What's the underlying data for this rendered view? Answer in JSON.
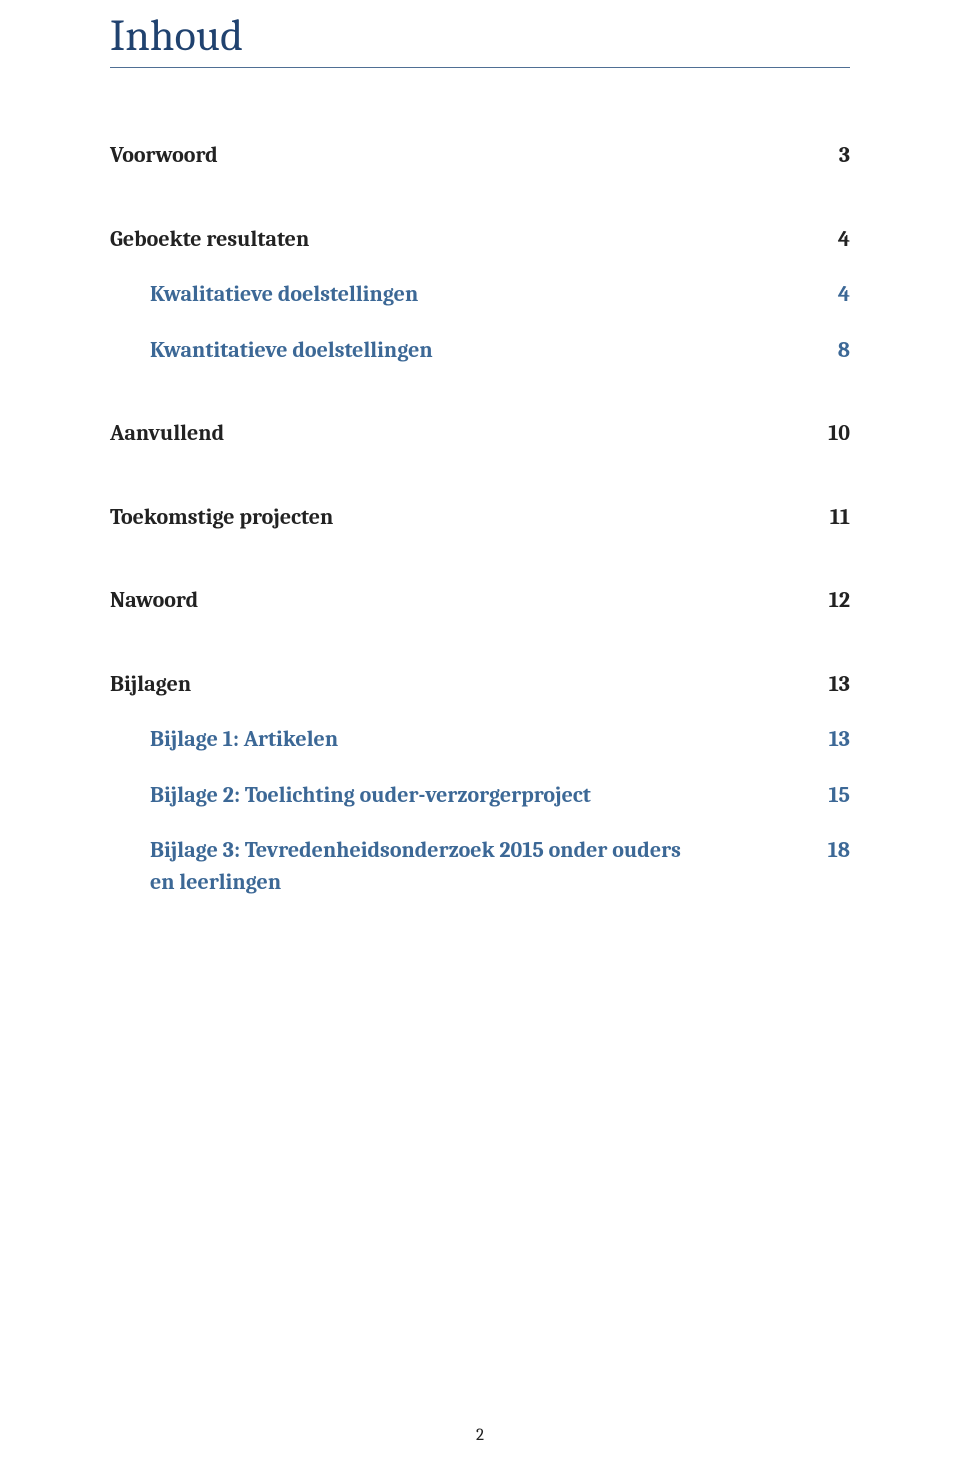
{
  "title": "Inhoud",
  "title_color": "#20426f",
  "title_rule_color": "#4f6f94",
  "h2_color": "#3c6896",
  "toc": [
    {
      "label": "Voorwoord",
      "page": "3",
      "level": 1
    },
    {
      "label": "Geboekte resultaten",
      "page": "4",
      "level": 1
    },
    {
      "label": "Kwalitatieve doelstellingen",
      "page": "4",
      "level": 2
    },
    {
      "label": "Kwantitatieve doelstellingen",
      "page": "8",
      "level": 2
    },
    {
      "label": "Aanvullend",
      "page": "10",
      "level": 1
    },
    {
      "label": "Toekomstige projecten",
      "page": "11",
      "level": 1
    },
    {
      "label": "Nawoord",
      "page": "12",
      "level": 1
    },
    {
      "label": "Bijlagen",
      "page": "13",
      "level": 1
    },
    {
      "label": "Bijlage 1: Artikelen",
      "page": "13",
      "level": 2
    },
    {
      "label": "Bijlage 2: Toelichting ouder-verzorgerproject",
      "page": "15",
      "level": 2
    },
    {
      "label": "Bijlage 3: Tevredenheidsonderzoek 2015 onder ouders",
      "page": "18",
      "level": 2
    },
    {
      "label": "en leerlingen",
      "page": "",
      "level": 2,
      "continue": true
    }
  ],
  "footer_page_number": "2"
}
